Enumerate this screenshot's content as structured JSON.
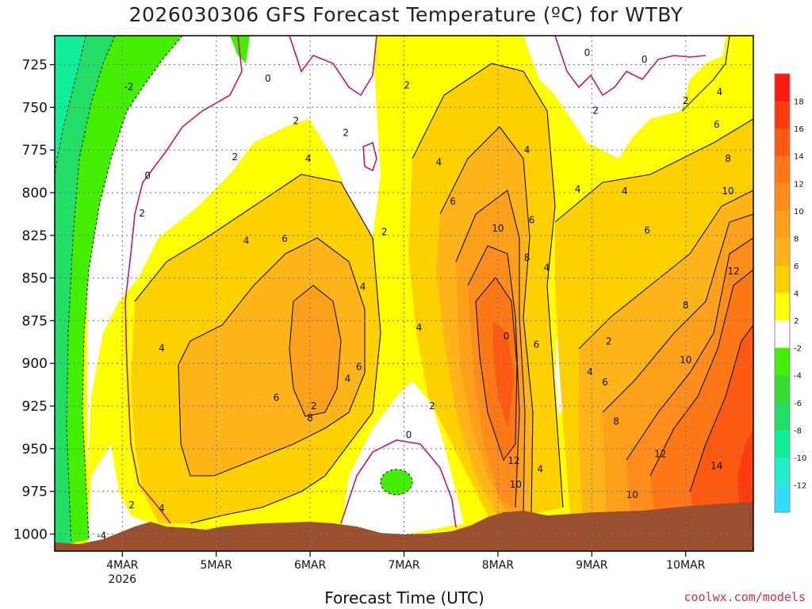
{
  "page": {
    "title": "2026030306 GFS Forecast Temperature (ºC) for WTBY",
    "x_axis_label": "Forecast Time (UTC)",
    "credit": "coolwx.com/models"
  },
  "colors": {
    "ground": "#9a5030",
    "grid": "#777777",
    "contour_line": "#111111",
    "zero_line": "#c0186e"
  },
  "chart_data": {
    "type": "heatmap",
    "title": "2026030306 GFS Forecast Temperature (ºC) for WTBY",
    "xlabel": "Forecast Time (UTC)",
    "ylabel": "",
    "y_unit": "hPa",
    "y_axis_reversed": true,
    "ylim": [
      1010,
      708
    ],
    "xlim": [
      -0.72,
      6.72
    ],
    "x_ticks": [
      {
        "x": 0,
        "label": "4MAR",
        "sublabel": "2026"
      },
      {
        "x": 1,
        "label": "5MAR",
        "sublabel": ""
      },
      {
        "x": 2,
        "label": "6MAR",
        "sublabel": ""
      },
      {
        "x": 3,
        "label": "7MAR",
        "sublabel": ""
      },
      {
        "x": 4,
        "label": "8MAR",
        "sublabel": ""
      },
      {
        "x": 5,
        "label": "9MAR",
        "sublabel": ""
      },
      {
        "x": 6,
        "label": "10MAR",
        "sublabel": ""
      }
    ],
    "y_ticks": [
      725,
      750,
      775,
      800,
      825,
      850,
      875,
      900,
      925,
      950,
      975,
      1000
    ],
    "grid": true,
    "colorbar": {
      "labels": [
        "18",
        "16",
        "14",
        "12",
        "10",
        "8",
        "6",
        "4",
        "2",
        "-2",
        "-4",
        "-6",
        "-8",
        "-10",
        "-12"
      ],
      "colors": [
        "#ff1a10",
        "#ff3c10",
        "#ff5a14",
        "#ff7818",
        "#ff8c1c",
        "#ffa01c",
        "#ffb41a",
        "#ffd000",
        "#ffff00",
        "#ffffff",
        "#44ee00",
        "#33dd33",
        "#22dd66",
        "#11ee99",
        "#22eecc",
        "#33ddff"
      ]
    },
    "contour_labels": [
      {
        "x": -0.22,
        "y": 1001,
        "text": "-4"
      },
      {
        "x": 0.07,
        "y": 738,
        "text": "-2"
      },
      {
        "x": 0.1,
        "y": 983,
        "text": "2"
      },
      {
        "x": 0.21,
        "y": 812,
        "text": "2"
      },
      {
        "x": 0.27,
        "y": 790,
        "text": "0"
      },
      {
        "x": 0.42,
        "y": 891,
        "text": "4"
      },
      {
        "x": 0.42,
        "y": 985,
        "text": "4"
      },
      {
        "x": 1.2,
        "y": 779,
        "text": "2"
      },
      {
        "x": 1.32,
        "y": 828,
        "text": "4"
      },
      {
        "x": 1.64,
        "y": 920,
        "text": "6"
      },
      {
        "x": 1.73,
        "y": 827,
        "text": "6"
      },
      {
        "x": 2.0,
        "y": 932,
        "text": "8"
      },
      {
        "x": 1.98,
        "y": 780,
        "text": "4"
      },
      {
        "x": 1.85,
        "y": 758,
        "text": "2"
      },
      {
        "x": 2.04,
        "y": 925,
        "text": "2"
      },
      {
        "x": 2.4,
        "y": 909,
        "text": "4"
      },
      {
        "x": 2.52,
        "y": 902,
        "text": "6"
      },
      {
        "x": 2.56,
        "y": 855,
        "text": "4"
      },
      {
        "x": 2.38,
        "y": 765,
        "text": "2"
      },
      {
        "x": 1.55,
        "y": 733,
        "text": "0"
      },
      {
        "x": 2.79,
        "y": 823,
        "text": "2"
      },
      {
        "x": 3.03,
        "y": 737,
        "text": "2"
      },
      {
        "x": 3.16,
        "y": 879,
        "text": "4"
      },
      {
        "x": 3.3,
        "y": 925,
        "text": "2"
      },
      {
        "x": 3.05,
        "y": 942,
        "text": "0"
      },
      {
        "x": 3.37,
        "y": 782,
        "text": "4"
      },
      {
        "x": 3.52,
        "y": 805,
        "text": "6"
      },
      {
        "x": 4.0,
        "y": 821,
        "text": "10"
      },
      {
        "x": 4.09,
        "y": 884,
        "text": "0"
      },
      {
        "x": 4.17,
        "y": 957,
        "text": "12"
      },
      {
        "x": 4.19,
        "y": 971,
        "text": "10"
      },
      {
        "x": 4.45,
        "y": 962,
        "text": "4"
      },
      {
        "x": 4.41,
        "y": 889,
        "text": "6"
      },
      {
        "x": 4.31,
        "y": 838,
        "text": "8"
      },
      {
        "x": 4.36,
        "y": 816,
        "text": "6"
      },
      {
        "x": 4.52,
        "y": 844,
        "text": "4"
      },
      {
        "x": 4.31,
        "y": 775,
        "text": "4"
      },
      {
        "x": 4.95,
        "y": 718,
        "text": "0"
      },
      {
        "x": 5.56,
        "y": 722,
        "text": "0"
      },
      {
        "x": 5.04,
        "y": 752,
        "text": "2"
      },
      {
        "x": 4.85,
        "y": 798,
        "text": "4"
      },
      {
        "x": 5.18,
        "y": 887,
        "text": "2"
      },
      {
        "x": 4.98,
        "y": 905,
        "text": "4"
      },
      {
        "x": 5.14,
        "y": 911,
        "text": "6"
      },
      {
        "x": 5.26,
        "y": 934,
        "text": "8"
      },
      {
        "x": 5.43,
        "y": 977,
        "text": "10"
      },
      {
        "x": 5.73,
        "y": 953,
        "text": "12"
      },
      {
        "x": 5.59,
        "y": 822,
        "text": "6"
      },
      {
        "x": 5.35,
        "y": 799,
        "text": "4"
      },
      {
        "x": 6.0,
        "y": 746,
        "text": "2"
      },
      {
        "x": 6.0,
        "y": 866,
        "text": "8"
      },
      {
        "x": 6.0,
        "y": 898,
        "text": "10"
      },
      {
        "x": 6.33,
        "y": 960,
        "text": "14"
      },
      {
        "x": 6.51,
        "y": 846,
        "text": "12"
      },
      {
        "x": 6.45,
        "y": 799,
        "text": "10"
      },
      {
        "x": 6.45,
        "y": 780,
        "text": "8"
      },
      {
        "x": 6.33,
        "y": 760,
        "text": "6"
      },
      {
        "x": 6.36,
        "y": 741,
        "text": "4"
      }
    ]
  }
}
